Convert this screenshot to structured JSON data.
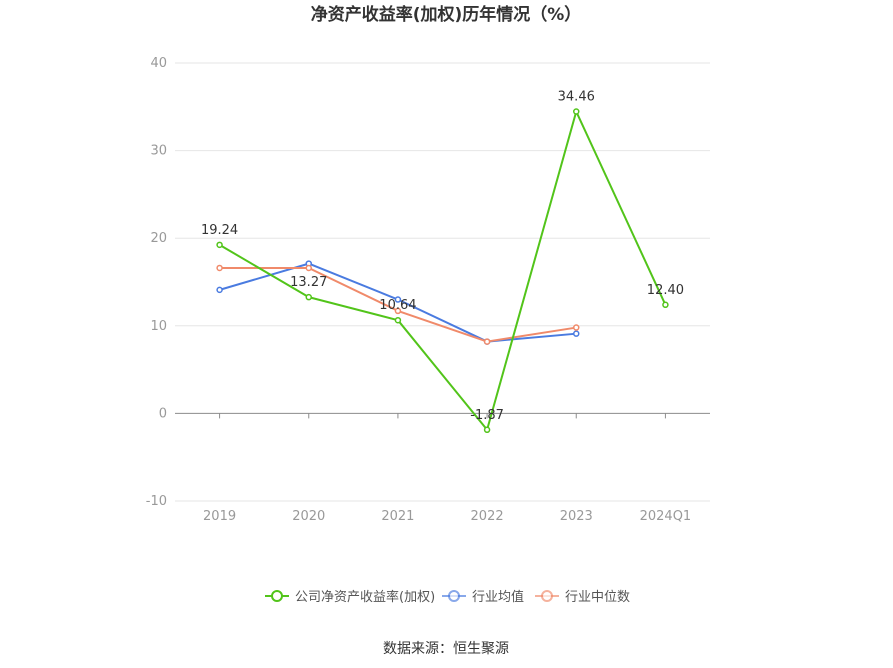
{
  "chart_data": {
    "type": "line",
    "title": "净资产收益率(加权)历年情况（%）",
    "categories": [
      "2019",
      "2020",
      "2021",
      "2022",
      "2023",
      "2024Q1"
    ],
    "ylim": [
      -10,
      40
    ],
    "yticks": [
      "40",
      "30",
      "20",
      "10",
      "0",
      "-10"
    ],
    "grid": true,
    "legend_position": "bottom",
    "series": [
      {
        "name": "公司净资产收益率(加权)",
        "color": "#52c41a",
        "values": [
          19.24,
          13.27,
          10.64,
          -1.87,
          34.46,
          12.4
        ],
        "labels": [
          "19.24",
          "13.27",
          "10.64",
          "-1.87",
          "34.46",
          "12.40"
        ]
      },
      {
        "name": "行业均值",
        "color": "#4a7be0",
        "values": [
          14.1,
          17.1,
          13.0,
          8.2,
          9.1,
          null
        ]
      },
      {
        "name": "行业中位数",
        "color": "#f08a6a",
        "values": [
          16.6,
          16.6,
          11.7,
          8.2,
          9.8,
          null
        ]
      }
    ],
    "source": "数据来源：恒生聚源"
  }
}
